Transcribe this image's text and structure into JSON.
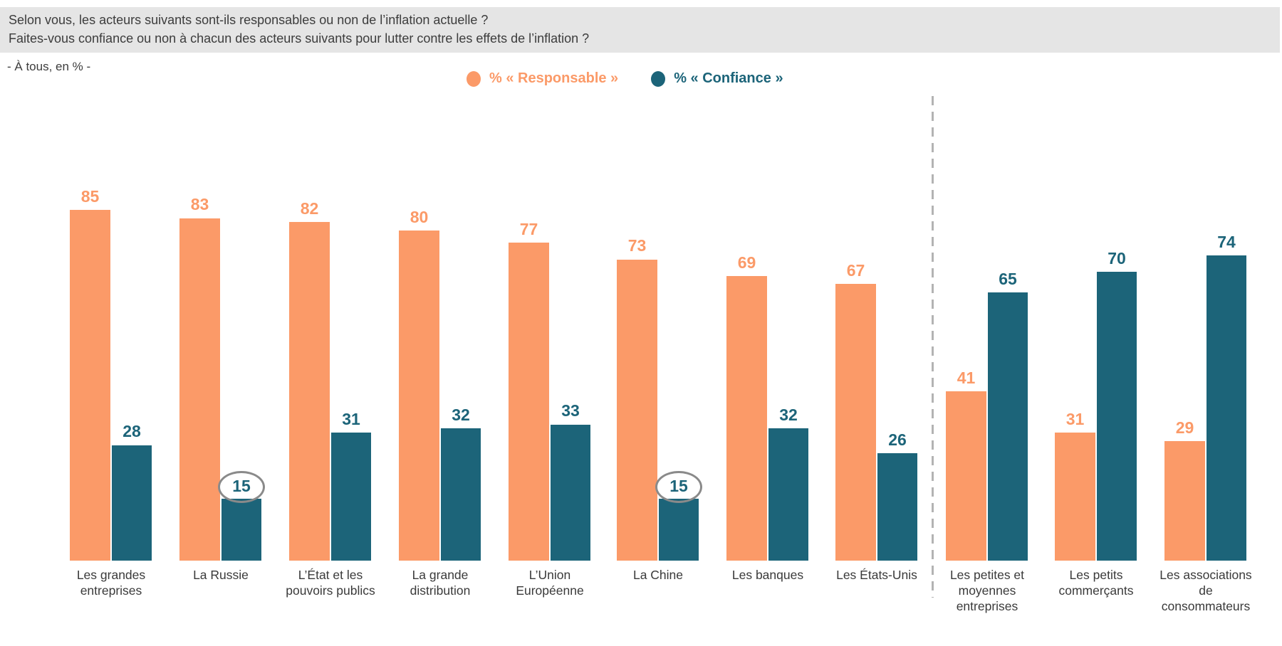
{
  "header": {
    "question_line1": "Selon vous, les acteurs suivants sont-ils responsables ou non de l’inflation actuelle ?",
    "question_line2": "Faites-vous confiance ou non à chacun des acteurs suivants pour lutter contre les effets de l’inflation ?",
    "subtitle": "- À tous, en % -"
  },
  "legend": [
    {
      "label": "% « Responsable »",
      "color": "#FB9A68"
    },
    {
      "label": "% « Confiance »",
      "color": "#1C6479"
    }
  ],
  "chart_data": {
    "type": "bar",
    "title": "",
    "categories": [
      "Les grandes\nentreprises",
      "La Russie",
      "L’État et les\npouvoirs publics",
      "La grande\ndistribution",
      "L’Union\nEuropéenne",
      "La Chine",
      "Les banques",
      "Les États-Unis",
      "Les petites et\nmoyennes\nentreprises",
      "Les petits\ncommerçants",
      "Les associations\nde\nconsommateurs"
    ],
    "series": [
      {
        "name": "% « Responsable »",
        "color": "#FB9A68",
        "values": [
          85,
          83,
          82,
          80,
          77,
          73,
          69,
          67,
          41,
          31,
          29
        ]
      },
      {
        "name": "% « Confiance »",
        "color": "#1C6479",
        "values": [
          28,
          15,
          31,
          32,
          33,
          15,
          32,
          26,
          65,
          70,
          74
        ],
        "circled_indices": [
          1,
          5
        ]
      }
    ],
    "annotations": [
      {
        "type": "circle",
        "series": "% « Confiance »",
        "category": "La Russie",
        "value": 15
      },
      {
        "type": "circle",
        "series": "% « Confiance »",
        "category": "La Chine",
        "value": 15
      }
    ],
    "separator_after_category_index": 7,
    "ylim": [
      0,
      100
    ],
    "grid": false,
    "value_labels": true,
    "legend_position": "top-center"
  },
  "style_colors": {
    "title_background": "#E5E5E5",
    "title_text": "#3C3C3C",
    "category_text": "#3A3A3A",
    "circle_stroke": "#8A8A8A",
    "separator_dash": "#B3B3B3"
  }
}
